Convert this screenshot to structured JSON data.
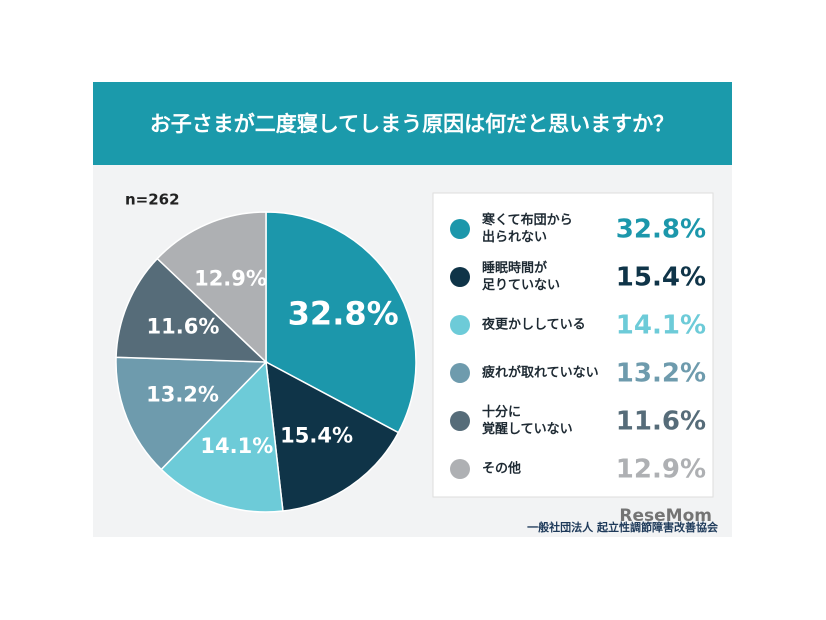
{
  "chart_data": {
    "type": "pie",
    "title": "お子さまが二度寝してしまう原因は何だと思いますか？",
    "sample_label": "n=262",
    "categories": [
      "寒くて布団から\n出られない",
      "睡眠時間が\n足りていない",
      "夜更かししている",
      "疲れが取れていない",
      "十分に\n覚醒していない",
      "その他"
    ],
    "values": [
      32.8,
      15.4,
      14.1,
      13.2,
      11.6,
      12.9
    ],
    "value_labels": [
      "32.8%",
      "15.4%",
      "14.1%",
      "13.2%",
      "11.6%",
      "12.9%"
    ],
    "colors": [
      "#1c97ab",
      "#0f3448",
      "#6dcbd8",
      "#6e9bad",
      "#566c79",
      "#aeb0b3"
    ],
    "source": "一般社団法人 起立性調節障害改善協会",
    "watermark": "ReseMom"
  }
}
